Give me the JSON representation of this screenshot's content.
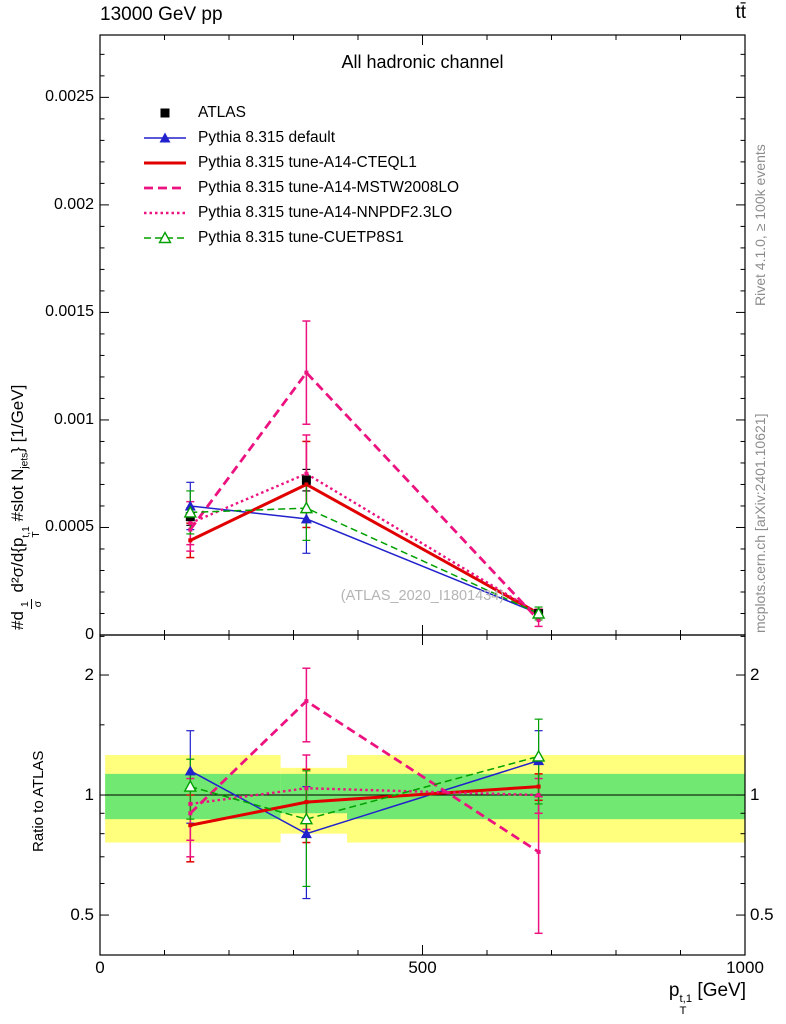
{
  "header": {
    "left": "13000 GeV pp",
    "right": "tt̄"
  },
  "side_notes": {
    "top_right": "Rivet 4.1.0, ≥ 100k events",
    "bottom_right": "mcplots.cern.ch [arXiv:2401.10621]"
  },
  "watermark": "(ATLAS_2020_I1801434)",
  "chart_data": {
    "type": "line",
    "title": "All hadronic channel",
    "x": [
      140,
      320,
      680
    ],
    "xlim": [
      0,
      1000
    ],
    "xticks": [
      {
        "v": 0,
        "label": "0"
      },
      {
        "v": 500,
        "label": "500"
      },
      {
        "v": 1000,
        "label": "1000"
      }
    ],
    "xlabel_parts": {
      "base": "p",
      "sub": "T",
      "sup": "t,1",
      "unit": " [GeV]"
    },
    "main": {
      "ylim": [
        0,
        0.00279
      ],
      "minor_step": 0.0001,
      "yticks": [
        {
          "v": 0,
          "label": "0"
        },
        {
          "v": 0.0005,
          "label": "0.0005"
        },
        {
          "v": 0.001,
          "label": "0.001"
        },
        {
          "v": 0.0015,
          "label": "0.0015"
        },
        {
          "v": 0.002,
          "label": "0.002"
        },
        {
          "v": 0.0025,
          "label": "0.0025"
        }
      ],
      "ylabel_parts": {
        "prefix": "#d",
        "frac_num": "1",
        "frac_den": "σ",
        "mid": " d²σ/d{p",
        "p_sup": "t,1",
        "p_sub": "T",
        "slot": " #slot N",
        "n_sub": "jets",
        "close": "}",
        "unit": " [1/GeV]"
      }
    },
    "ratio": {
      "ylabel": "Ratio to ATLAS",
      "scale": "log",
      "ylim": [
        0.397,
        2.52
      ],
      "yticks": [
        {
          "v": 0.5,
          "label": "0.5"
        },
        {
          "v": 1,
          "label": "1"
        },
        {
          "v": 2,
          "label": "2"
        }
      ],
      "minor_ticks": [
        0.6,
        0.7,
        0.8,
        0.9,
        1.5,
        2.5
      ],
      "reference_line": 1,
      "band_colors": {
        "yellow": "#ffff7d",
        "green": "#71e871"
      },
      "bands": {
        "edges": [
          8,
          280,
          383,
          1000
        ],
        "yellow": [
          [
            0.76,
            1.26
          ],
          [
            0.8,
            1.17
          ],
          [
            0.76,
            1.26
          ]
        ],
        "green": [
          [
            0.87,
            1.13
          ],
          [
            0.9,
            1.13
          ],
          [
            0.87,
            1.13
          ]
        ]
      }
    },
    "series": [
      {
        "id": "atlas",
        "label": "ATLAS",
        "color": "#000000",
        "line": "none",
        "width": 0,
        "marker": "square",
        "main": {
          "y": [
            0.00055,
            0.00072,
            0.0001
          ],
          "err": [
            4e-05,
            5e-05,
            1.2e-05
          ]
        },
        "ratio": null
      },
      {
        "id": "pythia-default",
        "label": "Pythia 8.315 default",
        "color": "#2222cc",
        "line": "solid",
        "width": 1.5,
        "marker": "triangle",
        "main": {
          "y": [
            0.0006,
            0.00054,
            0.0001
          ],
          "err": [
            0.00011,
            0.00016,
            2e-05
          ]
        },
        "ratio": {
          "y": [
            1.15,
            0.8,
            1.22
          ],
          "err": [
            0.3,
            0.25,
            0.23
          ]
        }
      },
      {
        "id": "tune-a14-cteql1",
        "label": "Pythia 8.315 tune-A14-CTEQL1",
        "color": "#e00000",
        "line": "solid",
        "width": 3,
        "marker": "dot",
        "main": {
          "y": [
            0.00044,
            0.0007,
            0.0001
          ],
          "err": [
            8e-05,
            0.0002,
            2e-05
          ]
        },
        "ratio": {
          "y": [
            0.84,
            0.96,
            1.05
          ],
          "err": [
            0.16,
            0.2,
            0.08
          ]
        }
      },
      {
        "id": "tune-a14-mstw2008lo",
        "label": "Pythia 8.315 tune-A14-MSTW2008LO",
        "color": "#ec1380",
        "line": "dashed",
        "width": 2.8,
        "marker": "dot",
        "main": {
          "y": [
            0.00049,
            0.00122,
            7e-05
          ],
          "err": [
            0.0001,
            0.00024,
            3e-05
          ]
        },
        "ratio": {
          "y": [
            0.9,
            1.72,
            0.72
          ],
          "err": [
            0.2,
            0.36,
            0.27
          ]
        }
      },
      {
        "id": "tune-a14-nnpdf23lo",
        "label": "Pythia 8.315 tune-A14-NNPDF2.3LO",
        "color": "#ec1380",
        "line": "dotted",
        "width": 2.4,
        "marker": "dot",
        "main": {
          "y": [
            0.00052,
            0.00075,
            0.0001
          ],
          "err": [
            0.0001,
            0.00018,
            2e-05
          ]
        },
        "ratio": {
          "y": [
            0.95,
            1.04,
            1.0
          ],
          "err": [
            0.18,
            0.22,
            0.1
          ]
        }
      },
      {
        "id": "tune-cuetp8s1",
        "label": "Pythia 8.315 tune-CUETP8S1",
        "color": "#00a000",
        "line": "dash-fine",
        "width": 1.5,
        "marker": "triangle-open",
        "main": {
          "y": [
            0.00057,
            0.00059,
            0.0001
          ],
          "err": [
            0.0001,
            0.00015,
            3e-05
          ]
        },
        "ratio": {
          "y": [
            1.05,
            0.87,
            1.25
          ],
          "err": [
            0.18,
            0.28,
            0.3
          ]
        }
      }
    ]
  }
}
